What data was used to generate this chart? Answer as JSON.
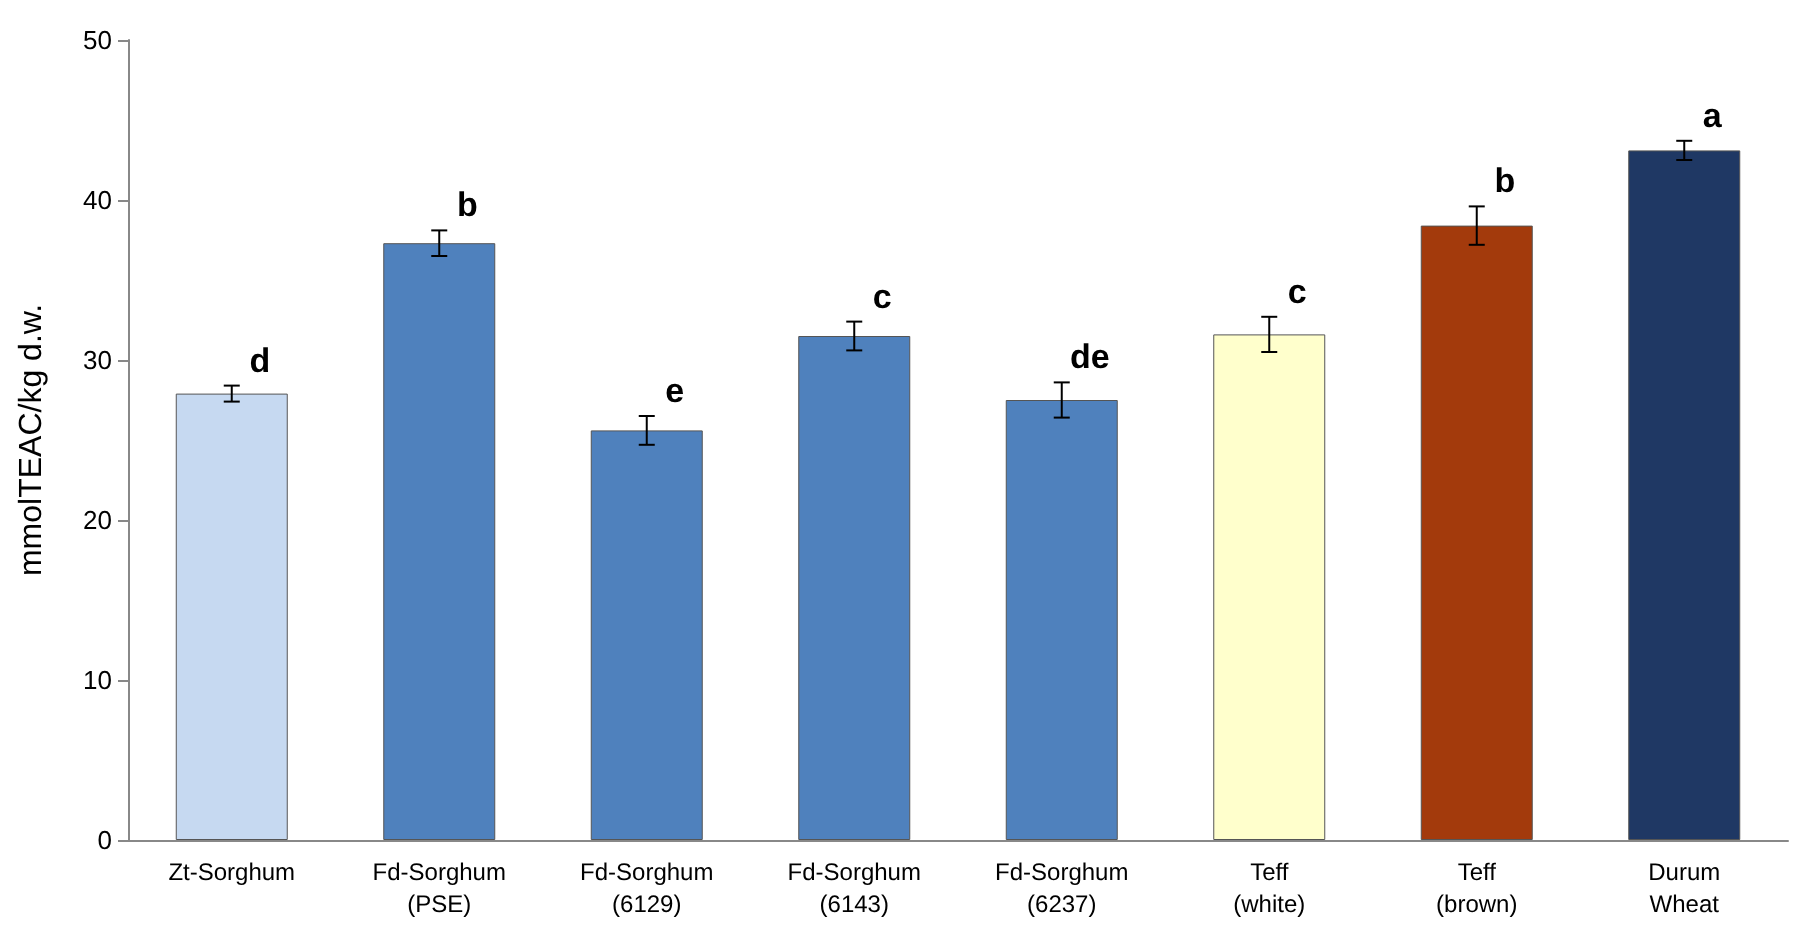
{
  "chart_data": {
    "type": "bar",
    "ylabel": "mmolTEAC/kg d.w.",
    "categories": [
      "Zt-Sorghum",
      "Fd-Sorghum\n(PSE)",
      "Fd-Sorghum\n(6129)",
      "Fd-Sorghum\n(6143)",
      "Fd-Sorghum\n(6237)",
      "Teff\n(white)",
      "Teff\n(brown)",
      "Durum\nWheat"
    ],
    "values": [
      27.9,
      37.3,
      25.6,
      31.5,
      27.5,
      31.6,
      38.4,
      43.1
    ],
    "errors": [
      0.5,
      0.8,
      0.9,
      0.9,
      1.1,
      1.1,
      1.2,
      0.6
    ],
    "colors": [
      "#c6d9f1",
      "#4f81bd",
      "#4f81bd",
      "#4f81bd",
      "#4f81bd",
      "#ffffcc",
      "#a33a0c",
      "#1f3864"
    ],
    "ylim": [
      0,
      50
    ],
    "yticks": [
      0,
      10,
      20,
      30,
      40,
      50
    ],
    "grid": false,
    "annotations": [
      {
        "text": "d",
        "x": "Zt-Sorghum",
        "y": 27.9
      },
      {
        "text": "b",
        "x": "Fd-Sorghum\n(PSE)",
        "y": 37.3
      },
      {
        "text": "e",
        "x": "Fd-Sorghum\n(6129)",
        "y": 25.6
      },
      {
        "text": "c",
        "x": "Fd-Sorghum\n(6143)",
        "y": 31.5
      },
      {
        "text": "de",
        "x": "Fd-Sorghum\n(6237)",
        "y": 27.5
      },
      {
        "text": "c",
        "x": "Teff\n(white)",
        "y": 31.6
      },
      {
        "text": "b",
        "x": "Teff\n(brown)",
        "y": 38.4
      },
      {
        "text": "a",
        "x": "Durum\nWheat",
        "y": 43.1
      }
    ]
  }
}
